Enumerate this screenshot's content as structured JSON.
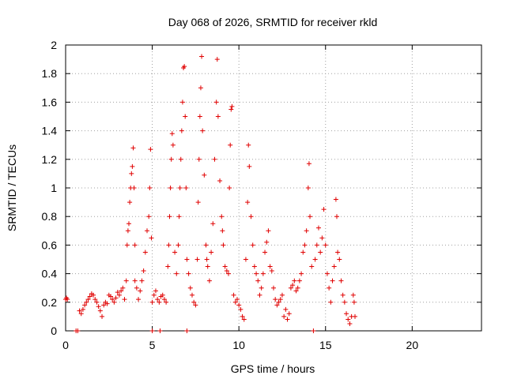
{
  "chart_data": {
    "type": "scatter",
    "title": "Day 068 of 2026, SRMTID for receiver rkld",
    "xlabel": "GPS time / hours",
    "ylabel": "SRMTID / TECUs",
    "xlim": [
      0,
      24
    ],
    "ylim": [
      0,
      2
    ],
    "xticks": [
      0,
      5,
      10,
      15,
      20
    ],
    "xtick_labels": [
      "0",
      "5",
      "10",
      "15",
      "20"
    ],
    "yticks": [
      0,
      0.2,
      0.4,
      0.6,
      0.8,
      1,
      1.2,
      1.4,
      1.6,
      1.8,
      2
    ],
    "ytick_labels": [
      "0",
      "0.2",
      "0.4",
      "0.6",
      "0.8",
      "1",
      "1.2",
      "1.4",
      "1.6",
      "1.8",
      "2"
    ],
    "grid": true,
    "marker": "+",
    "series": [
      {
        "name": "SRMTID",
        "color": "#e00000",
        "points": [
          [
            0.0,
            0.22
          ],
          [
            0.05,
            0.23
          ],
          [
            0.1,
            0.22
          ],
          [
            0.6,
            0.0
          ],
          [
            0.7,
            0.0
          ],
          [
            0.8,
            0.14
          ],
          [
            0.9,
            0.12
          ],
          [
            1.0,
            0.15
          ],
          [
            1.1,
            0.18
          ],
          [
            1.2,
            0.2
          ],
          [
            1.3,
            0.22
          ],
          [
            1.4,
            0.24
          ],
          [
            1.5,
            0.26
          ],
          [
            1.6,
            0.25
          ],
          [
            1.7,
            0.22
          ],
          [
            1.8,
            0.2
          ],
          [
            1.9,
            0.17
          ],
          [
            2.0,
            0.14
          ],
          [
            2.1,
            0.1
          ],
          [
            2.2,
            0.18
          ],
          [
            2.3,
            0.2
          ],
          [
            2.4,
            0.19
          ],
          [
            2.5,
            0.25
          ],
          [
            2.6,
            0.24
          ],
          [
            2.7,
            0.22
          ],
          [
            2.8,
            0.2
          ],
          [
            2.9,
            0.23
          ],
          [
            3.0,
            0.27
          ],
          [
            3.1,
            0.25
          ],
          [
            3.2,
            0.28
          ],
          [
            3.3,
            0.3
          ],
          [
            3.4,
            0.22
          ],
          [
            3.5,
            0.35
          ],
          [
            3.55,
            0.6
          ],
          [
            3.6,
            0.7
          ],
          [
            3.65,
            0.75
          ],
          [
            3.7,
            0.9
          ],
          [
            3.75,
            1.0
          ],
          [
            3.8,
            1.1
          ],
          [
            3.85,
            1.15
          ],
          [
            3.9,
            1.28
          ],
          [
            3.95,
            1.0
          ],
          [
            4.0,
            0.6
          ],
          [
            4.0,
            0.35
          ],
          [
            4.1,
            0.3
          ],
          [
            4.2,
            0.22
          ],
          [
            4.3,
            0.28
          ],
          [
            4.4,
            0.35
          ],
          [
            4.5,
            0.42
          ],
          [
            4.6,
            0.55
          ],
          [
            4.7,
            0.7
          ],
          [
            4.8,
            0.8
          ],
          [
            4.85,
            1.0
          ],
          [
            4.9,
            1.27
          ],
          [
            4.95,
            0.65
          ],
          [
            5.0,
            0.0
          ],
          [
            5.0,
            0.2
          ],
          [
            5.1,
            0.25
          ],
          [
            5.2,
            0.28
          ],
          [
            5.3,
            0.22
          ],
          [
            5.4,
            0.2
          ],
          [
            5.45,
            0.0
          ],
          [
            5.5,
            0.24
          ],
          [
            5.6,
            0.25
          ],
          [
            5.7,
            0.22
          ],
          [
            5.8,
            0.2
          ],
          [
            5.9,
            0.45
          ],
          [
            5.95,
            0.6
          ],
          [
            6.0,
            0.8
          ],
          [
            6.05,
            1.0
          ],
          [
            6.1,
            1.2
          ],
          [
            6.15,
            1.38
          ],
          [
            6.2,
            1.3
          ],
          [
            6.3,
            0.55
          ],
          [
            6.4,
            0.4
          ],
          [
            6.5,
            0.6
          ],
          [
            6.55,
            0.8
          ],
          [
            6.6,
            1.0
          ],
          [
            6.65,
            1.2
          ],
          [
            6.7,
            1.4
          ],
          [
            6.75,
            1.6
          ],
          [
            6.8,
            1.84
          ],
          [
            6.85,
            1.85
          ],
          [
            6.9,
            1.5
          ],
          [
            6.95,
            1.0
          ],
          [
            7.0,
            0.5
          ],
          [
            7.0,
            0.0
          ],
          [
            7.1,
            0.4
          ],
          [
            7.2,
            0.3
          ],
          [
            7.3,
            0.25
          ],
          [
            7.4,
            0.2
          ],
          [
            7.5,
            0.18
          ],
          [
            7.6,
            0.5
          ],
          [
            7.65,
            0.9
          ],
          [
            7.7,
            1.2
          ],
          [
            7.75,
            1.5
          ],
          [
            7.8,
            1.7
          ],
          [
            7.85,
            1.92
          ],
          [
            7.9,
            1.4
          ],
          [
            8.0,
            1.09
          ],
          [
            8.1,
            0.6
          ],
          [
            8.15,
            0.5
          ],
          [
            8.2,
            0.45
          ],
          [
            8.3,
            0.35
          ],
          [
            8.4,
            0.55
          ],
          [
            8.5,
            0.75
          ],
          [
            8.6,
            1.2
          ],
          [
            8.7,
            1.6
          ],
          [
            8.75,
            1.9
          ],
          [
            8.8,
            1.5
          ],
          [
            8.9,
            1.05
          ],
          [
            9.0,
            0.8
          ],
          [
            9.05,
            0.7
          ],
          [
            9.1,
            0.6
          ],
          [
            9.2,
            0.45
          ],
          [
            9.3,
            0.42
          ],
          [
            9.4,
            0.4
          ],
          [
            9.45,
            1.0
          ],
          [
            9.5,
            1.3
          ],
          [
            9.55,
            1.55
          ],
          [
            9.6,
            1.57
          ],
          [
            9.7,
            0.25
          ],
          [
            9.8,
            0.2
          ],
          [
            9.9,
            0.22
          ],
          [
            10.0,
            0.18
          ],
          [
            10.1,
            0.15
          ],
          [
            10.2,
            0.1
          ],
          [
            10.3,
            0.08
          ],
          [
            10.4,
            0.5
          ],
          [
            10.5,
            0.9
          ],
          [
            10.55,
            1.3
          ],
          [
            10.6,
            1.15
          ],
          [
            10.7,
            0.8
          ],
          [
            10.8,
            0.6
          ],
          [
            10.9,
            0.45
          ],
          [
            11.0,
            0.4
          ],
          [
            11.1,
            0.35
          ],
          [
            11.2,
            0.25
          ],
          [
            11.3,
            0.3
          ],
          [
            11.4,
            0.4
          ],
          [
            11.5,
            0.55
          ],
          [
            11.6,
            0.62
          ],
          [
            11.7,
            0.7
          ],
          [
            11.8,
            0.45
          ],
          [
            11.9,
            0.42
          ],
          [
            12.0,
            0.3
          ],
          [
            12.1,
            0.22
          ],
          [
            12.2,
            0.18
          ],
          [
            12.3,
            0.2
          ],
          [
            12.4,
            0.22
          ],
          [
            12.5,
            0.25
          ],
          [
            12.6,
            0.1
          ],
          [
            12.7,
            0.15
          ],
          [
            12.8,
            0.08
          ],
          [
            12.9,
            0.12
          ],
          [
            13.0,
            0.3
          ],
          [
            13.1,
            0.32
          ],
          [
            13.2,
            0.35
          ],
          [
            13.3,
            0.28
          ],
          [
            13.4,
            0.3
          ],
          [
            13.5,
            0.35
          ],
          [
            13.6,
            0.4
          ],
          [
            13.7,
            0.55
          ],
          [
            13.8,
            0.6
          ],
          [
            13.9,
            0.7
          ],
          [
            14.0,
            1.0
          ],
          [
            14.05,
            1.17
          ],
          [
            14.1,
            0.8
          ],
          [
            14.2,
            0.45
          ],
          [
            14.3,
            0.0
          ],
          [
            14.4,
            0.5
          ],
          [
            14.5,
            0.6
          ],
          [
            14.6,
            0.72
          ],
          [
            14.7,
            0.55
          ],
          [
            14.8,
            0.65
          ],
          [
            14.9,
            0.85
          ],
          [
            15.0,
            0.6
          ],
          [
            15.1,
            0.4
          ],
          [
            15.2,
            0.3
          ],
          [
            15.3,
            0.2
          ],
          [
            15.4,
            0.35
          ],
          [
            15.5,
            0.45
          ],
          [
            15.6,
            0.92
          ],
          [
            15.65,
            0.8
          ],
          [
            15.7,
            0.55
          ],
          [
            15.8,
            0.5
          ],
          [
            15.9,
            0.35
          ],
          [
            16.0,
            0.25
          ],
          [
            16.1,
            0.2
          ],
          [
            16.2,
            0.12
          ],
          [
            16.3,
            0.08
          ],
          [
            16.4,
            0.05
          ],
          [
            16.5,
            0.1
          ],
          [
            16.6,
            0.25
          ],
          [
            16.65,
            0.2
          ],
          [
            16.7,
            0.1
          ]
        ]
      }
    ]
  }
}
